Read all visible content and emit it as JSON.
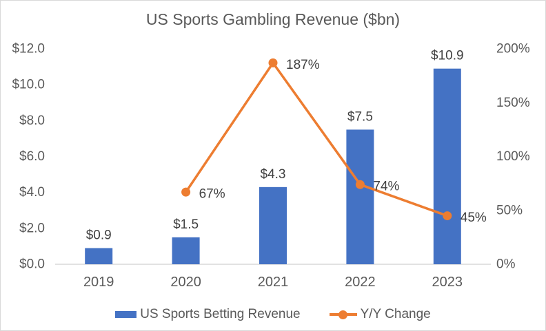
{
  "chart_data": {
    "type": "combo",
    "title": "US Sports Gambling Revenue ($bn)",
    "categories": [
      "2019",
      "2020",
      "2021",
      "2022",
      "2023"
    ],
    "series": [
      {
        "name": "US Sports Betting Revenue",
        "type": "bar",
        "axis": "left",
        "values": [
          0.9,
          1.5,
          4.3,
          7.5,
          10.9
        ],
        "labels": [
          "$0.9",
          "$1.5",
          "$4.3",
          "$7.5",
          "$10.9"
        ],
        "color": "#4472C4"
      },
      {
        "name": "Y/Y Change",
        "type": "line",
        "axis": "right",
        "values": [
          null,
          67,
          187,
          74,
          45
        ],
        "labels": [
          null,
          "67%",
          "187%",
          "74%",
          "45%"
        ],
        "color": "#ED7D31"
      }
    ],
    "left_axis": {
      "min": 0,
      "max": 12,
      "ticks": [
        "$0.0",
        "$2.0",
        "$4.0",
        "$6.0",
        "$8.0",
        "$10.0",
        "$12.0"
      ],
      "tick_values": [
        0,
        2,
        4,
        6,
        8,
        10,
        12
      ]
    },
    "right_axis": {
      "min": 0,
      "max": 200,
      "ticks": [
        "0%",
        "50%",
        "100%",
        "150%",
        "200%"
      ],
      "tick_values": [
        0,
        50,
        100,
        150,
        200
      ]
    },
    "legend": [
      {
        "label": "US Sports Betting Revenue",
        "color": "#4472C4",
        "marker": "bar"
      },
      {
        "label": "Y/Y Change",
        "color": "#ED7D31",
        "marker": "line"
      }
    ],
    "grid": "off",
    "legend_position": "bottom",
    "colors": {
      "axis_text": "#595959",
      "data_label_text": "#404040",
      "axis_line": "#D9D9D9",
      "title_text": "#595959"
    }
  }
}
